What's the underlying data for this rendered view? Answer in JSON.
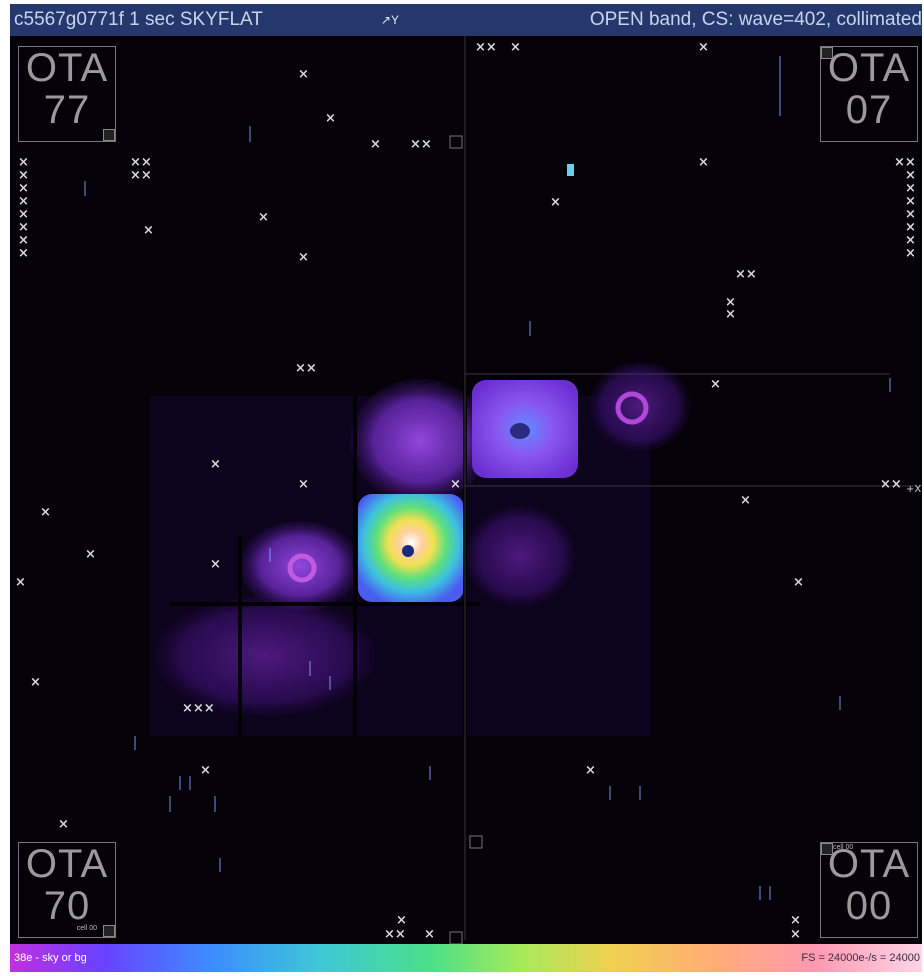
{
  "title_bar": {
    "exposure": "c5567g0771f 1 sec SKYFLAT",
    "axis_glyph": "↗Y",
    "filter": "OPEN band, CS: wave=402, collimated"
  },
  "ota_labels": [
    {
      "id": "OTA",
      "num": "77",
      "corner": "top-left"
    },
    {
      "id": "OTA",
      "num": "07",
      "corner": "top-right"
    },
    {
      "id": "OTA",
      "num": "70",
      "corner": "bottom-left",
      "cell": "cell 00"
    },
    {
      "id": "OTA",
      "num": "00",
      "corner": "bottom-right",
      "cell": "cell 00"
    }
  ],
  "axis_x_label": "+X",
  "colorbar": {
    "low_label": "38e - sky or bg",
    "high_label": "FS = 24000e-/s = 24000"
  },
  "colors": {
    "background": "#05020a",
    "title_bar": "#24386e",
    "hot_cell": "#f0d050",
    "glow": "#8a3ad8"
  }
}
